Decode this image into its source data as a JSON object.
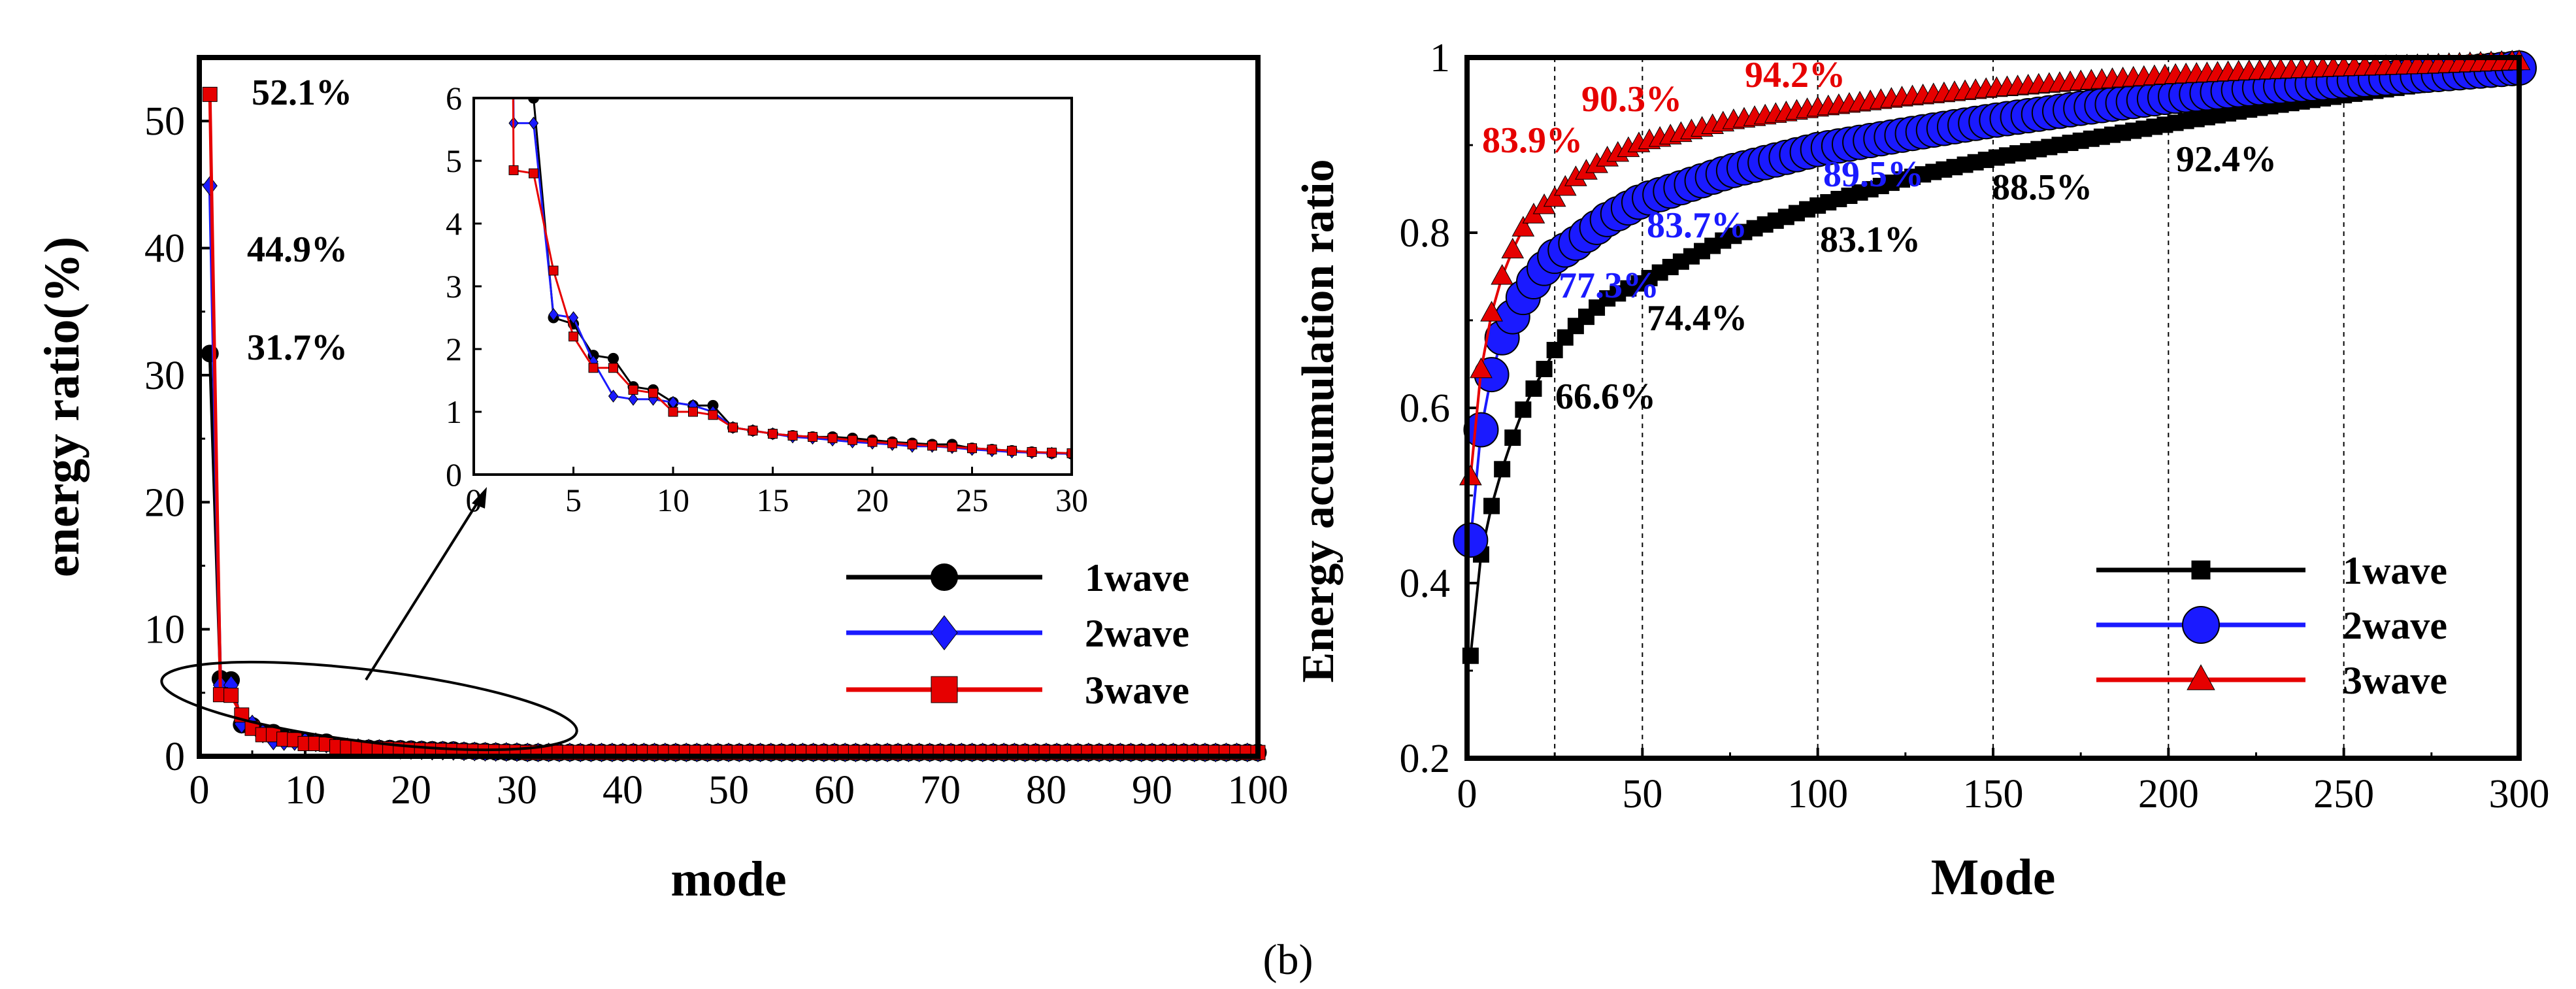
{
  "figure_label": "(b)",
  "colors": {
    "wave1": "#000000",
    "wave2": "#1a1aff",
    "wave3": "#e60000",
    "axis": "#000000"
  },
  "chart_data": [
    {
      "type": "line",
      "title": "",
      "xlabel": "mode",
      "ylabel": "energy ratio(%)",
      "xlim": [
        0,
        100
      ],
      "ylim": [
        0,
        55
      ],
      "xticks": [
        "0",
        "10",
        "20",
        "30",
        "40",
        "50",
        "60",
        "70",
        "80",
        "90",
        "100"
      ],
      "yticks": [
        "0",
        "10",
        "20",
        "30",
        "40",
        "50"
      ],
      "legend": [
        "1wave",
        "2wave",
        "3wave"
      ],
      "legend_position": "right",
      "annotations": [
        "52.1%",
        "44.9%",
        "31.7%"
      ],
      "series": [
        {
          "name": "1wave",
          "marker": "circle",
          "x": [
            1,
            2,
            3,
            4,
            5,
            6,
            7,
            8,
            9,
            10,
            11,
            12,
            13,
            14,
            15,
            16,
            17,
            18,
            19,
            20,
            21,
            22,
            23,
            24,
            25,
            26,
            27,
            28,
            29,
            30
          ],
          "values": [
            31.7,
            6.1,
            6.0,
            2.5,
            2.4,
            1.9,
            1.85,
            1.4,
            1.35,
            1.15,
            1.1,
            1.1,
            0.75,
            0.7,
            0.65,
            0.62,
            0.6,
            0.6,
            0.58,
            0.55,
            0.52,
            0.5,
            0.48,
            0.48,
            0.42,
            0.4,
            0.38,
            0.36,
            0.34,
            0.33
          ]
        },
        {
          "name": "2wave",
          "marker": "diamond",
          "x": [
            1,
            2,
            3,
            4,
            5,
            6,
            7,
            8,
            9,
            10,
            11,
            12,
            13,
            14,
            15,
            16,
            17,
            18,
            19,
            20,
            21,
            22,
            23,
            24,
            25,
            26,
            27,
            28,
            29,
            30
          ],
          "values": [
            44.9,
            5.6,
            5.6,
            2.55,
            2.5,
            1.8,
            1.25,
            1.2,
            1.2,
            1.15,
            1.1,
            1.0,
            0.75,
            0.7,
            0.65,
            0.6,
            0.58,
            0.55,
            0.52,
            0.5,
            0.48,
            0.45,
            0.45,
            0.43,
            0.4,
            0.38,
            0.36,
            0.35,
            0.34,
            0.33
          ]
        },
        {
          "name": "3wave",
          "marker": "square",
          "x": [
            1,
            2,
            3,
            4,
            5,
            6,
            7,
            8,
            9,
            10,
            11,
            12,
            13,
            14,
            15,
            16,
            17,
            18,
            19,
            20,
            21,
            22,
            23,
            24,
            25,
            26,
            27,
            28,
            29,
            30
          ],
          "values": [
            52.1,
            4.85,
            4.8,
            3.25,
            2.2,
            1.7,
            1.7,
            1.35,
            1.3,
            1.0,
            1.0,
            0.95,
            0.75,
            0.7,
            0.65,
            0.62,
            0.6,
            0.58,
            0.55,
            0.52,
            0.5,
            0.48,
            0.46,
            0.44,
            0.42,
            0.4,
            0.38,
            0.36,
            0.35,
            0.34
          ]
        }
      ],
      "tail_value_mode_30_to_100": 0.3,
      "inset": {
        "xlim": [
          0,
          30
        ],
        "ylim": [
          0,
          6
        ],
        "xticks": [
          "0",
          "5",
          "10",
          "15",
          "20",
          "25",
          "30"
        ],
        "yticks": [
          "0",
          "1",
          "2",
          "3",
          "4",
          "5",
          "6"
        ],
        "zoom_region": "modes 2-30"
      }
    },
    {
      "type": "line",
      "title": "",
      "xlabel": "Mode",
      "ylabel": "Energy accumulation ratio",
      "xlim": [
        0,
        300
      ],
      "ylim": [
        0.2,
        1
      ],
      "xticks": [
        "0",
        "50",
        "100",
        "150",
        "200",
        "250",
        "300"
      ],
      "yticks": [
        "0.2",
        "0.4",
        "0.6",
        "0.8",
        "1"
      ],
      "reference_lines_x": [
        25,
        50,
        100,
        150,
        200,
        250
      ],
      "legend": [
        "1wave",
        "2wave",
        "3wave"
      ],
      "legend_position": "lower-right",
      "annotations": {
        "wave1": [
          "66.6%",
          "74.4%",
          "83.1%",
          "88.5%",
          "92.4%"
        ],
        "wave2": [
          "77.3%",
          "83.7%",
          "89.5%"
        ],
        "wave3": [
          "83.9%",
          "90.3%",
          "94.2%"
        ]
      },
      "series": [
        {
          "name": "1wave",
          "marker": "square",
          "x": [
            1,
            2,
            5,
            10,
            15,
            20,
            25,
            30,
            40,
            50,
            60,
            75,
            100,
            125,
            150,
            175,
            200,
            225,
            250,
            275,
            300
          ],
          "values": [
            0.317,
            0.378,
            0.46,
            0.53,
            0.59,
            0.63,
            0.666,
            0.69,
            0.725,
            0.744,
            0.765,
            0.795,
            0.831,
            0.862,
            0.885,
            0.905,
            0.924,
            0.942,
            0.957,
            0.971,
            0.985
          ]
        },
        {
          "name": "2wave",
          "marker": "circle",
          "x": [
            1,
            2,
            5,
            10,
            15,
            20,
            25,
            30,
            40,
            50,
            60,
            75,
            100,
            125,
            150,
            175,
            200,
            225,
            250,
            275,
            300
          ],
          "values": [
            0.449,
            0.505,
            0.61,
            0.68,
            0.72,
            0.75,
            0.773,
            0.785,
            0.815,
            0.837,
            0.85,
            0.87,
            0.895,
            0.912,
            0.928,
            0.942,
            0.955,
            0.965,
            0.973,
            0.98,
            0.988
          ]
        },
        {
          "name": "3wave",
          "marker": "triangle",
          "x": [
            1,
            2,
            5,
            10,
            15,
            20,
            25,
            30,
            40,
            50,
            60,
            75,
            100,
            125,
            150,
            175,
            200,
            225,
            250,
            275,
            300
          ],
          "values": [
            0.521,
            0.57,
            0.68,
            0.75,
            0.8,
            0.825,
            0.839,
            0.86,
            0.885,
            0.903,
            0.912,
            0.927,
            0.942,
            0.954,
            0.964,
            0.972,
            0.979,
            0.984,
            0.988,
            0.991,
            0.995
          ]
        }
      ]
    }
  ]
}
